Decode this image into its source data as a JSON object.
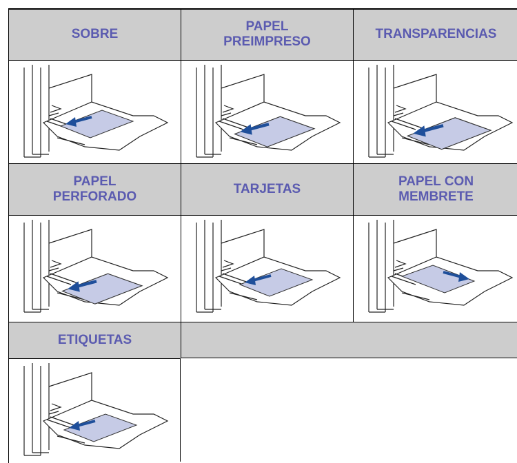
{
  "table": {
    "rows": [
      [
        "SOBRE",
        "PAPEL\nPREIMPRESO",
        "TRANSPARENCIAS"
      ],
      [
        "PAPEL\nPERFORADO",
        "TARJETAS",
        "PAPEL CON\nMEMBRETE"
      ],
      [
        "ETIQUETAS"
      ]
    ]
  }
}
